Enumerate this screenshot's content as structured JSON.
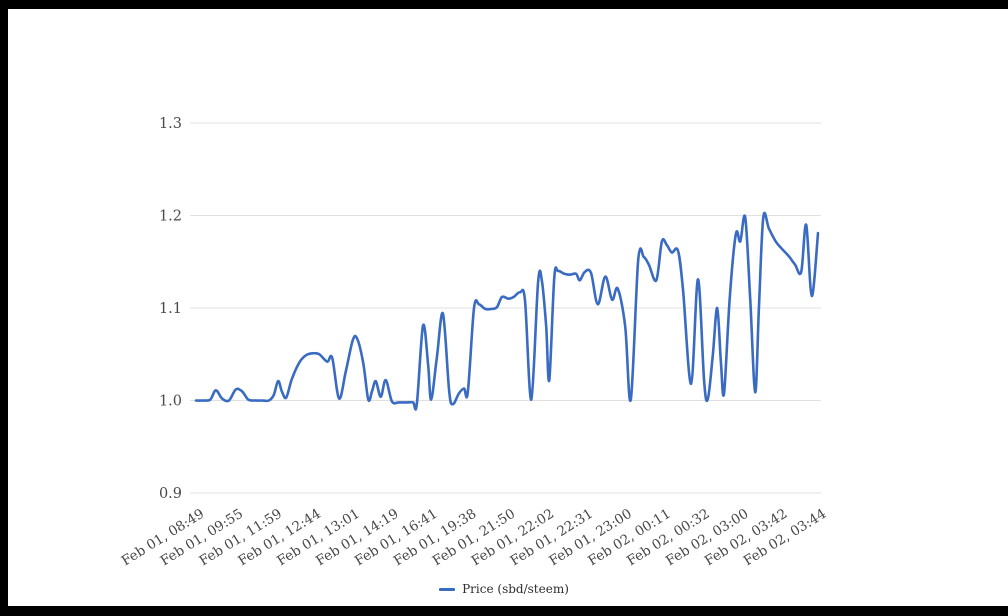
{
  "legend": {
    "label": "Price (sbd/steem)"
  },
  "colors": {
    "series": "#3a6bc2",
    "grid": "#e0e0e0",
    "axis_text": "#4a4a4a",
    "background": "#ffffff",
    "frame": "#000000"
  },
  "chart_data": {
    "type": "line",
    "title": "",
    "xlabel": "",
    "ylabel": "",
    "ylim": [
      0.9,
      1.3
    ],
    "grid": true,
    "legend_position": "bottom",
    "x_label_rotation_deg": -32,
    "y_ticks": [
      0.9,
      1.0,
      1.1,
      1.2,
      1.3
    ],
    "x_tick_labels": [
      "Feb 01, 08:49",
      "Feb 01, 09:55",
      "Feb 01, 11:59",
      "Feb 01, 12:44",
      "Feb 01, 13:01",
      "Feb 01, 14:19",
      "Feb 01, 16:41",
      "Feb 01, 19:38",
      "Feb 01, 21:50",
      "Feb 01, 22:02",
      "Feb 01, 22:31",
      "Feb 01, 23:00",
      "Feb 02, 00:11",
      "Feb 02, 00:32",
      "Feb 02, 03:00",
      "Feb 02, 03:42",
      "Feb 02, 03:44"
    ],
    "series": [
      {
        "name": "Price (sbd/steem)",
        "color": "#3a6bc2",
        "points": [
          [
            0.0,
            1.0
          ],
          [
            0.013,
            1.0
          ],
          [
            0.023,
            1.001
          ],
          [
            0.032,
            1.011
          ],
          [
            0.042,
            1.002
          ],
          [
            0.053,
            1.0
          ],
          [
            0.064,
            1.012
          ],
          [
            0.074,
            1.01
          ],
          [
            0.084,
            1.001
          ],
          [
            0.095,
            1.0
          ],
          [
            0.106,
            1.0
          ],
          [
            0.117,
            1.0
          ],
          [
            0.125,
            1.006
          ],
          [
            0.132,
            1.021
          ],
          [
            0.138,
            1.01
          ],
          [
            0.145,
            1.003
          ],
          [
            0.154,
            1.023
          ],
          [
            0.166,
            1.041
          ],
          [
            0.177,
            1.049
          ],
          [
            0.188,
            1.051
          ],
          [
            0.198,
            1.05
          ],
          [
            0.211,
            1.042
          ],
          [
            0.219,
            1.046
          ],
          [
            0.23,
            1.002
          ],
          [
            0.241,
            1.032
          ],
          [
            0.252,
            1.065
          ],
          [
            0.259,
            1.067
          ],
          [
            0.269,
            1.04
          ],
          [
            0.277,
            1.001
          ],
          [
            0.283,
            1.01
          ],
          [
            0.289,
            1.021
          ],
          [
            0.297,
            1.004
          ],
          [
            0.305,
            1.022
          ],
          [
            0.315,
            0.999
          ],
          [
            0.326,
            0.998
          ],
          [
            0.339,
            0.998
          ],
          [
            0.349,
            0.998
          ],
          [
            0.355,
            0.996
          ],
          [
            0.365,
            1.081
          ],
          [
            0.373,
            1.04
          ],
          [
            0.378,
            1.001
          ],
          [
            0.387,
            1.045
          ],
          [
            0.397,
            1.094
          ],
          [
            0.407,
            1.01
          ],
          [
            0.413,
            0.996
          ],
          [
            0.423,
            1.008
          ],
          [
            0.431,
            1.013
          ],
          [
            0.437,
            1.009
          ],
          [
            0.447,
            1.1
          ],
          [
            0.455,
            1.104
          ],
          [
            0.465,
            1.099
          ],
          [
            0.476,
            1.099
          ],
          [
            0.484,
            1.101
          ],
          [
            0.492,
            1.112
          ],
          [
            0.502,
            1.11
          ],
          [
            0.511,
            1.112
          ],
          [
            0.521,
            1.117
          ],
          [
            0.529,
            1.108
          ],
          [
            0.539,
            1.001
          ],
          [
            0.55,
            1.128
          ],
          [
            0.556,
            1.13
          ],
          [
            0.563,
            1.08
          ],
          [
            0.568,
            1.022
          ],
          [
            0.576,
            1.133
          ],
          [
            0.582,
            1.14
          ],
          [
            0.592,
            1.137
          ],
          [
            0.601,
            1.136
          ],
          [
            0.611,
            1.137
          ],
          [
            0.617,
            1.13
          ],
          [
            0.625,
            1.139
          ],
          [
            0.635,
            1.138
          ],
          [
            0.646,
            1.104
          ],
          [
            0.658,
            1.134
          ],
          [
            0.669,
            1.109
          ],
          [
            0.678,
            1.121
          ],
          [
            0.69,
            1.08
          ],
          [
            0.699,
            1.001
          ],
          [
            0.711,
            1.152
          ],
          [
            0.72,
            1.155
          ],
          [
            0.728,
            1.147
          ],
          [
            0.74,
            1.13
          ],
          [
            0.749,
            1.172
          ],
          [
            0.757,
            1.168
          ],
          [
            0.765,
            1.16
          ],
          [
            0.775,
            1.162
          ],
          [
            0.783,
            1.12
          ],
          [
            0.796,
            1.018
          ],
          [
            0.807,
            1.131
          ],
          [
            0.817,
            1.02
          ],
          [
            0.823,
            1.002
          ],
          [
            0.831,
            1.05
          ],
          [
            0.838,
            1.1
          ],
          [
            0.844,
            1.04
          ],
          [
            0.849,
            1.008
          ],
          [
            0.858,
            1.11
          ],
          [
            0.868,
            1.18
          ],
          [
            0.875,
            1.172
          ],
          [
            0.883,
            1.198
          ],
          [
            0.891,
            1.11
          ],
          [
            0.899,
            1.009
          ],
          [
            0.905,
            1.1
          ],
          [
            0.912,
            1.198
          ],
          [
            0.921,
            1.186
          ],
          [
            0.932,
            1.172
          ],
          [
            0.942,
            1.164
          ],
          [
            0.953,
            1.156
          ],
          [
            0.963,
            1.147
          ],
          [
            0.973,
            1.139
          ],
          [
            0.981,
            1.19
          ],
          [
            0.99,
            1.113
          ],
          [
            1.0,
            1.181
          ]
        ]
      }
    ]
  }
}
